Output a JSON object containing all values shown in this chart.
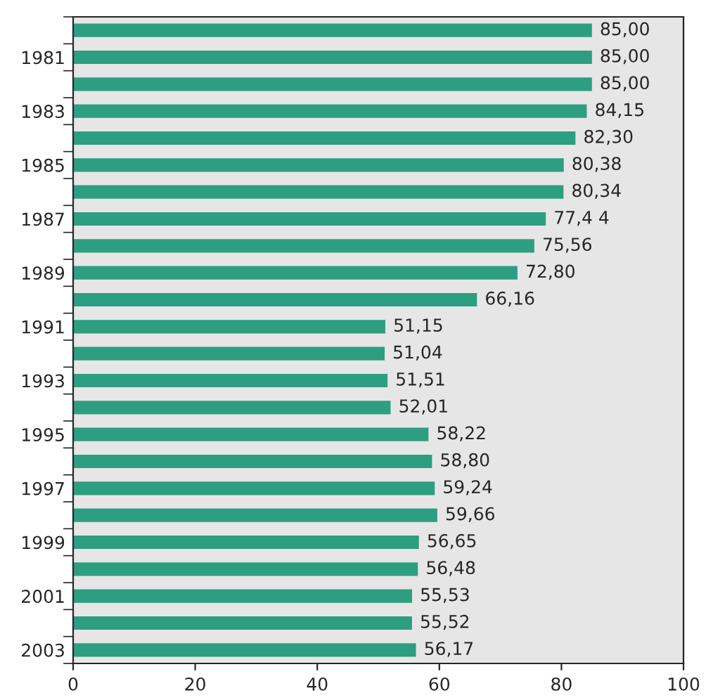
{
  "chart_data": {
    "type": "bar",
    "orientation": "horizontal",
    "categories": [
      null,
      "1981",
      null,
      "1983",
      null,
      "1985",
      null,
      "1987",
      null,
      "1989",
      null,
      "1991",
      null,
      "1993",
      null,
      "1995",
      null,
      "1997",
      null,
      "1999",
      null,
      "2001",
      null,
      "2003"
    ],
    "values": [
      85.0,
      85.0,
      85.0,
      84.15,
      82.3,
      80.38,
      80.34,
      77.44,
      75.56,
      72.8,
      66.16,
      51.15,
      51.04,
      51.51,
      52.01,
      58.22,
      58.8,
      59.24,
      59.66,
      56.65,
      56.48,
      55.53,
      55.52,
      56.17
    ],
    "value_labels": [
      "85,00",
      "85,00",
      "85,00",
      "84,15",
      "82,30",
      "80,38",
      "80,34",
      "77,4 4",
      "75,56",
      "72,80",
      "66,16",
      "51,15",
      "51,04",
      "51,51",
      "52,01",
      "58,22",
      "58,80",
      "59,24",
      "59,66",
      "56,65",
      "56,48",
      "55,53",
      "55,52",
      "56,17"
    ],
    "color": "#2e9e80",
    "xlim": [
      0,
      100
    ],
    "xticks": [
      0,
      20,
      40,
      60,
      80,
      100
    ],
    "grid": false,
    "legend": false
  }
}
